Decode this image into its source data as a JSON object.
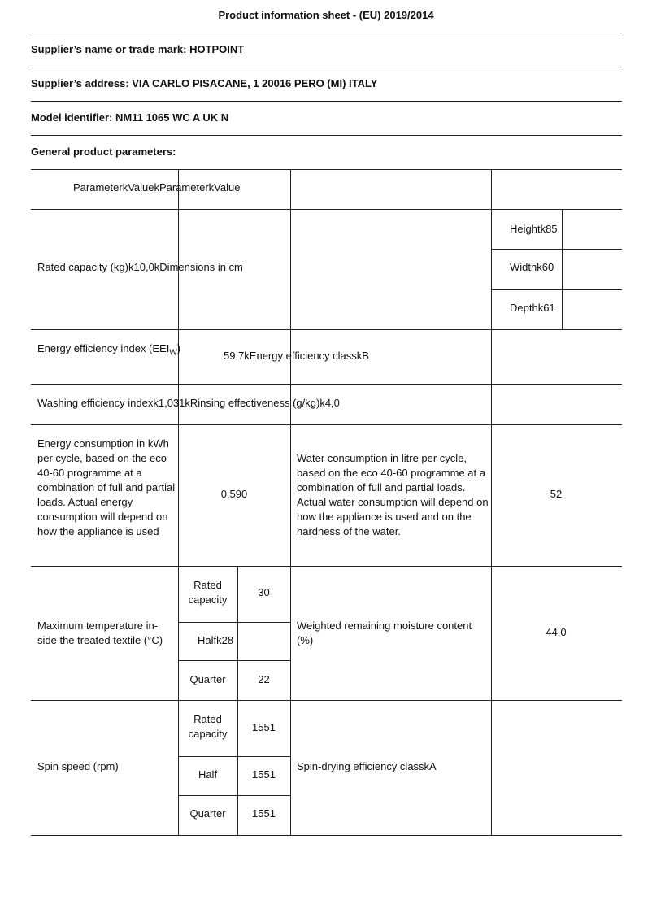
{
  "title": "Product information sheet - (EU) 2019/2014",
  "supplier_name": "Supplier’s name or trade mark: HOTPOINT",
  "supplier_address": "Supplier’s address: VIA CARLO PISACANE, 1 20016 PERO (MI) ITALY",
  "model": "Model identifier: NM11 1065 WC A UK N",
  "general": "General product parameters:",
  "table": {
    "header": "ParameterkValuekParameterkValue",
    "rated_capacity": "Rated capacity (kg)k10,0kDimensions in cm",
    "height": "Heightk85",
    "width": "Widthk60",
    "depth": "Depthk61",
    "eei_label": "Energy efficiency index (EEI",
    "eei_sub": "W",
    "eei_close": ")",
    "eei_value": "59,7kEnergy efficiency classkB",
    "washing": "Washing efficiency indexk1,031kRinsing effectiveness (g/kg)k4,0",
    "energy_label": "Energy consumption in kWh per cycle, based on the eco 40-60 programme at a combination of full and partial loads. Actual energy consumption will depend on how the appliance is used",
    "energy_value": "0,590",
    "water_label": "Water consumption in litre per cycle, based on the eco 40-60 programme at a combination of full and partial loads. Actual water consumption will depend on how the appliance is used and on the hardness of the water.",
    "water_value": "52",
    "temp_label": "Maximum temperature in-side the treated textile (°C)",
    "temp_rated": "Rated capacity",
    "temp_rated_value": "30",
    "temp_half": "Halfk28",
    "temp_quarter": "Quarter",
    "temp_quarter_value": "22",
    "moisture_label": "Weighted remaining moisture content (%)",
    "moisture_value": "44,0",
    "spin_label": "Spin speed (rpm)",
    "spin_rated": "Rated capacity",
    "spin_rated_value": "1551",
    "spin_half": "Half",
    "spin_half_value": "1551",
    "spin_quarter": "Quarter",
    "spin_quarter_value": "1551",
    "spin_class": "Spin-drying efficiency classkA"
  }
}
